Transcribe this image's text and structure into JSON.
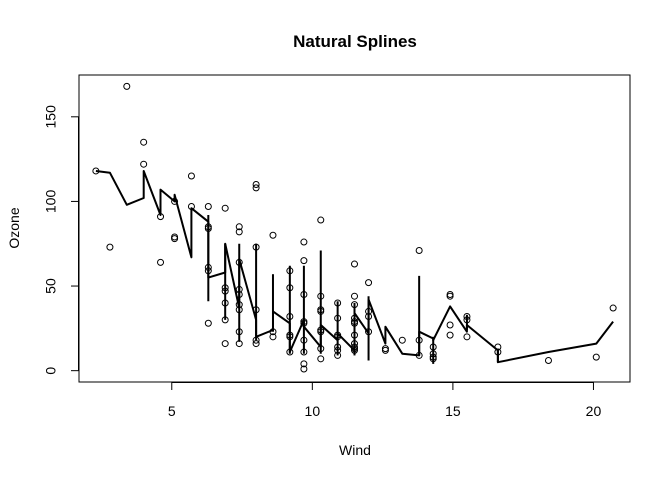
{
  "chart_data": {
    "type": "scatter",
    "title": "Natural Splines",
    "xlabel": "Wind",
    "ylabel": "Ozone",
    "xlim": [
      1.7,
      21.3
    ],
    "ylim": [
      -6.7,
      174.7
    ],
    "xticks": [
      5,
      10,
      15,
      20
    ],
    "yticks": [
      0,
      50,
      100,
      150
    ],
    "xtick_labels": [
      "5",
      "10",
      "15",
      "20"
    ],
    "ytick_labels": [
      "0",
      "50",
      "100",
      "150"
    ],
    "grid": false,
    "legend": "none",
    "points": [
      [
        2.3,
        118
      ],
      [
        2.8,
        73
      ],
      [
        3.4,
        168
      ],
      [
        4.0,
        135
      ],
      [
        4.0,
        122
      ],
      [
        4.6,
        91
      ],
      [
        4.6,
        64
      ],
      [
        5.1,
        79
      ],
      [
        5.1,
        78
      ],
      [
        5.1,
        100
      ],
      [
        5.7,
        115
      ],
      [
        5.7,
        97
      ],
      [
        6.3,
        97
      ],
      [
        6.3,
        85
      ],
      [
        6.3,
        84
      ],
      [
        6.3,
        61
      ],
      [
        6.3,
        59
      ],
      [
        6.3,
        28
      ],
      [
        6.9,
        96
      ],
      [
        6.9,
        49
      ],
      [
        6.9,
        47
      ],
      [
        6.9,
        40
      ],
      [
        6.9,
        30
      ],
      [
        6.9,
        16
      ],
      [
        7.4,
        85
      ],
      [
        7.4,
        82
      ],
      [
        7.4,
        64
      ],
      [
        7.4,
        48
      ],
      [
        7.4,
        45
      ],
      [
        7.4,
        39
      ],
      [
        7.4,
        36
      ],
      [
        7.4,
        23
      ],
      [
        7.4,
        16
      ],
      [
        8.0,
        110
      ],
      [
        8.0,
        108
      ],
      [
        8.0,
        73
      ],
      [
        8.0,
        36
      ],
      [
        8.0,
        18
      ],
      [
        8.0,
        16
      ],
      [
        8.6,
        80
      ],
      [
        8.6,
        23
      ],
      [
        8.6,
        20
      ],
      [
        9.2,
        59
      ],
      [
        9.2,
        49
      ],
      [
        9.2,
        32
      ],
      [
        9.2,
        21
      ],
      [
        9.2,
        20
      ],
      [
        9.2,
        11
      ],
      [
        9.7,
        76
      ],
      [
        9.7,
        65
      ],
      [
        9.7,
        45
      ],
      [
        9.7,
        29
      ],
      [
        9.7,
        28
      ],
      [
        9.7,
        18
      ],
      [
        9.7,
        11
      ],
      [
        9.7,
        4
      ],
      [
        9.7,
        1
      ],
      [
        10.3,
        89
      ],
      [
        10.3,
        44
      ],
      [
        10.3,
        36
      ],
      [
        10.3,
        35
      ],
      [
        10.3,
        24
      ],
      [
        10.3,
        23
      ],
      [
        10.3,
        13
      ],
      [
        10.3,
        7
      ],
      [
        10.9,
        40
      ],
      [
        10.9,
        31
      ],
      [
        10.9,
        21
      ],
      [
        10.9,
        20
      ],
      [
        10.9,
        14
      ],
      [
        10.9,
        12
      ],
      [
        10.9,
        9
      ],
      [
        11.5,
        63
      ],
      [
        11.5,
        44
      ],
      [
        11.5,
        39
      ],
      [
        11.5,
        31
      ],
      [
        11.5,
        29
      ],
      [
        11.5,
        28
      ],
      [
        11.5,
        21
      ],
      [
        11.5,
        16
      ],
      [
        11.5,
        14
      ],
      [
        11.5,
        13
      ],
      [
        11.5,
        12
      ],
      [
        12.0,
        52
      ],
      [
        12.0,
        35
      ],
      [
        12.0,
        32
      ],
      [
        12.0,
        23
      ],
      [
        12.6,
        13
      ],
      [
        12.6,
        12
      ],
      [
        13.2,
        18
      ],
      [
        13.8,
        71
      ],
      [
        13.8,
        18
      ],
      [
        13.8,
        9
      ],
      [
        14.3,
        14
      ],
      [
        14.3,
        10
      ],
      [
        14.3,
        8
      ],
      [
        14.3,
        7
      ],
      [
        14.9,
        45
      ],
      [
        14.9,
        44
      ],
      [
        14.9,
        27
      ],
      [
        14.9,
        21
      ],
      [
        15.5,
        32
      ],
      [
        15.5,
        30
      ],
      [
        15.5,
        20
      ],
      [
        16.6,
        14
      ],
      [
        16.6,
        11
      ],
      [
        18.4,
        6
      ],
      [
        20.1,
        8
      ],
      [
        20.7,
        37
      ]
    ],
    "fit_line": {
      "x": [
        2.3,
        2.8,
        3.4,
        4.0,
        4.0,
        4.6,
        4.6,
        5.1,
        5.1,
        5.7,
        5.7,
        6.3,
        6.3,
        6.9,
        6.9,
        7.4,
        7.4,
        8.0,
        8.0,
        8.6,
        8.6,
        9.2,
        9.2,
        9.7,
        9.7,
        10.3,
        10.3,
        10.9,
        10.9,
        11.5,
        11.5,
        12.0,
        12.0,
        12.6,
        12.6,
        13.2,
        13.8,
        13.8,
        14.3,
        14.3,
        14.9,
        15.5,
        15.5,
        16.6,
        16.6,
        18.4,
        20.1,
        20.7
      ],
      "y": [
        118,
        117,
        98,
        102,
        118,
        92,
        107,
        100,
        104,
        67,
        96,
        88,
        55,
        58,
        75,
        37,
        66,
        30,
        20,
        24,
        35,
        28,
        11,
        30,
        26,
        14,
        27,
        18,
        22,
        12,
        34,
        22,
        42,
        16,
        26,
        10,
        9,
        23,
        19,
        18,
        38,
        23,
        27,
        12,
        5,
        11,
        16,
        29
      ]
    },
    "vertical_segments": [
      {
        "x": 6.3,
        "y0": 41,
        "y1": 92
      },
      {
        "x": 6.9,
        "y0": 30,
        "y1": 75
      },
      {
        "x": 7.4,
        "y0": 17,
        "y1": 75
      },
      {
        "x": 8.0,
        "y0": 18,
        "y1": 75
      },
      {
        "x": 8.6,
        "y0": 23,
        "y1": 57
      },
      {
        "x": 9.2,
        "y0": 10,
        "y1": 62
      },
      {
        "x": 9.7,
        "y0": 10,
        "y1": 62
      },
      {
        "x": 10.3,
        "y0": 10,
        "y1": 71
      },
      {
        "x": 10.9,
        "y0": 9,
        "y1": 41
      },
      {
        "x": 11.5,
        "y0": 9,
        "y1": 40
      },
      {
        "x": 12.0,
        "y0": 6,
        "y1": 44
      },
      {
        "x": 13.8,
        "y0": 9,
        "y1": 56
      },
      {
        "x": 14.3,
        "y0": 4,
        "y1": 20
      },
      {
        "x": 15.5,
        "y0": 24,
        "y1": 33
      },
      {
        "x": 16.6,
        "y0": 5,
        "y1": 13
      }
    ]
  }
}
